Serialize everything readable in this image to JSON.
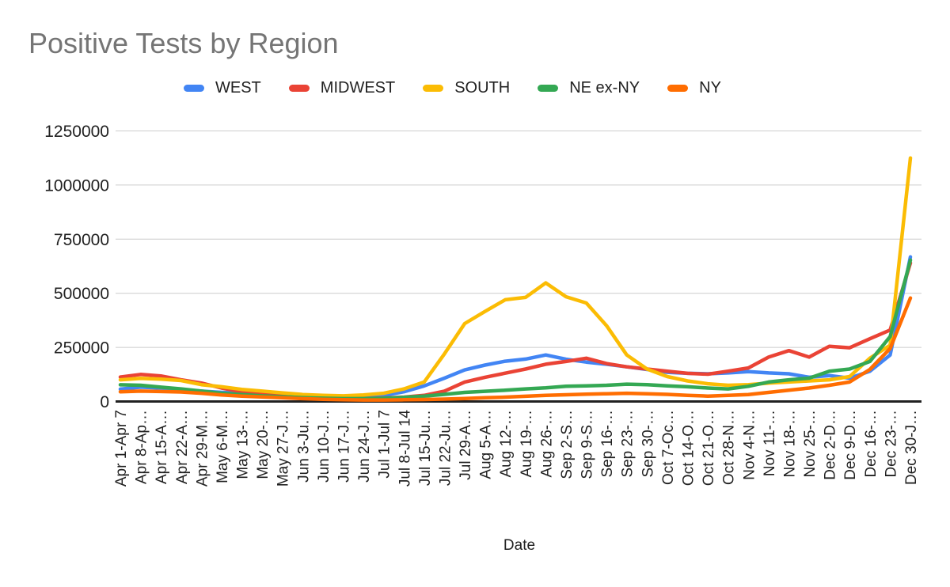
{
  "chart_data": {
    "type": "line",
    "title": "Positive Tests by Region",
    "xlabel": "Date",
    "ylabel": "",
    "ylim": [
      0,
      1250000
    ],
    "grid": true,
    "legend_position": "top",
    "yticks": [
      0,
      250000,
      500000,
      750000,
      1000000,
      1250000
    ],
    "ytick_labels": [
      "0",
      "250000",
      "500000",
      "750000",
      "1000000",
      "1250000"
    ],
    "categories": [
      "Apr 1-Apr 7",
      "Apr 8-Ap…",
      "Apr 15-A…",
      "Apr 22-A…",
      "Apr 29-M…",
      "May 6-M…",
      "May 13-…",
      "May 20-…",
      "May 27-J…",
      "Jun 3-Ju…",
      "Jun 10-J…",
      "Jun 17-J…",
      "Jun 24-J…",
      "Jul 1-Jul 7",
      "Jul 8-Jul 14",
      "Jul 15-Ju…",
      "Jul 22-Ju…",
      "Jul 29-A…",
      "Aug 5-A…",
      "Aug 12-…",
      "Aug 19-…",
      "Aug 26-…",
      "Sep 2-S…",
      "Sep 9-S…",
      "Sep 16-…",
      "Sep 23-…",
      "Sep 30-…",
      "Oct 7-Oc…",
      "Oct 14-O…",
      "Oct 21-O…",
      "Oct 28-N…",
      "Nov 4-N…",
      "Nov 11-…",
      "Nov 18-…",
      "Nov 25-…",
      "Dec 2-D…",
      "Dec 9-D…",
      "Dec 16-…",
      "Dec 23-…",
      "Dec 30-J…"
    ],
    "series": [
      {
        "name": "WEST",
        "color": "#4285F4",
        "values": [
          57000,
          66000,
          62000,
          55000,
          48000,
          42000,
          38000,
          34000,
          30000,
          26000,
          22000,
          20000,
          22000,
          28000,
          45000,
          72000,
          108000,
          146000,
          168000,
          186000,
          196000,
          215000,
          195000,
          182000,
          172000,
          160000,
          148000,
          135000,
          130000,
          128000,
          132000,
          138000,
          132000,
          128000,
          112000,
          120000,
          108000,
          140000,
          215000,
          668000
        ]
      },
      {
        "name": "MIDWEST",
        "color": "#EA4335",
        "values": [
          113000,
          125000,
          118000,
          100000,
          85000,
          62000,
          45000,
          35000,
          28000,
          22000,
          18000,
          15000,
          14000,
          16000,
          20000,
          28000,
          48000,
          90000,
          112000,
          131000,
          150000,
          172000,
          185000,
          200000,
          175000,
          160000,
          150000,
          140000,
          130000,
          126000,
          140000,
          155000,
          205000,
          235000,
          205000,
          255000,
          248000,
          290000,
          330000,
          640000
        ]
      },
      {
        "name": "SOUTH",
        "color": "#FBBC04",
        "values": [
          100000,
          107000,
          103000,
          97000,
          78000,
          68000,
          56000,
          48000,
          40000,
          32000,
          28000,
          26000,
          30000,
          38000,
          58000,
          90000,
          220000,
          360000,
          416000,
          470000,
          481000,
          548000,
          484000,
          455000,
          350000,
          215000,
          150000,
          115000,
          95000,
          82000,
          75000,
          78000,
          85000,
          90000,
          95000,
          100000,
          115000,
          200000,
          260000,
          1125000
        ]
      },
      {
        "name": "NE ex-NY",
        "color": "#34A853",
        "values": [
          77000,
          75000,
          66000,
          58000,
          48000,
          38000,
          32000,
          26000,
          22000,
          18000,
          15000,
          13000,
          13000,
          15000,
          19000,
          25000,
          33000,
          42000,
          47000,
          52000,
          58000,
          63000,
          70000,
          72000,
          75000,
          80000,
          78000,
          72000,
          68000,
          62000,
          58000,
          70000,
          90000,
          100000,
          108000,
          140000,
          150000,
          185000,
          300000,
          653000
        ]
      },
      {
        "name": "NY",
        "color": "#FF6D01",
        "values": [
          45000,
          48000,
          46000,
          44000,
          38000,
          30000,
          25000,
          21000,
          17000,
          13000,
          10000,
          8000,
          7000,
          7000,
          8000,
          9000,
          11000,
          14000,
          17000,
          20000,
          24000,
          28000,
          31000,
          34000,
          36000,
          38000,
          36000,
          33000,
          28000,
          25000,
          28000,
          32000,
          42000,
          52000,
          62000,
          75000,
          90000,
          148000,
          245000,
          478000
        ]
      }
    ]
  }
}
